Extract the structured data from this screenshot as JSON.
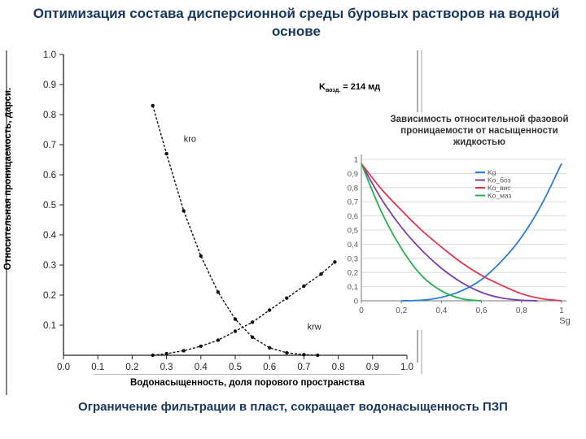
{
  "slide": {
    "title": "Оптимизация состава дисперсионной среды буровых растворов на водной основе",
    "footer": "Ограничение фильтрации в пласт, сокращает водонасыщенность ПЗП"
  },
  "annotation": {
    "k_prefix": "K",
    "k_sub": "возд.",
    "k_value": "= 214 мд"
  },
  "colors": {
    "title": "#17375e",
    "kg": "#2a7fd0",
    "ko_boz": "#7b3fa6",
    "ko_vis": "#e0364f",
    "ko_maz": "#28b050"
  },
  "chart_data": [
    {
      "type": "line",
      "title": "",
      "xlabel": "Водонасыщенность, доля порового пространства",
      "ylabel": "Относительная проницаемость, дарси.",
      "xlim": [
        0,
        1.0
      ],
      "ylim": [
        0,
        1.0
      ],
      "x_ticks": [
        "0.0",
        "0.1",
        "0.2",
        "0.3",
        "0.4",
        "0.5",
        "0.6",
        "0.7",
        "0.8",
        "0.9",
        "1.0"
      ],
      "y_ticks": [
        "0.1",
        "0.2",
        "0.3",
        "0.4",
        "0.5",
        "0.6",
        "0.7",
        "0.8",
        "0.9",
        "1.0"
      ],
      "grid": false,
      "series": [
        {
          "name": "kro",
          "x": [
            0.26,
            0.3,
            0.35,
            0.4,
            0.45,
            0.5,
            0.55,
            0.6,
            0.65,
            0.7,
            0.74
          ],
          "y": [
            0.83,
            0.67,
            0.48,
            0.33,
            0.21,
            0.12,
            0.06,
            0.025,
            0.008,
            0.002,
            0.0
          ]
        },
        {
          "name": "krw",
          "x": [
            0.26,
            0.3,
            0.35,
            0.4,
            0.45,
            0.5,
            0.55,
            0.6,
            0.65,
            0.7,
            0.75,
            0.79
          ],
          "y": [
            0.0,
            0.005,
            0.015,
            0.03,
            0.05,
            0.08,
            0.11,
            0.15,
            0.19,
            0.23,
            0.27,
            0.31
          ]
        }
      ]
    },
    {
      "type": "line",
      "title": "Зависимость относительной фазовой проницаемости от насыщенности жидкостью",
      "xlabel": "Sg",
      "ylabel": "",
      "xlim": [
        0,
        1
      ],
      "ylim": [
        0,
        1
      ],
      "x_ticks": [
        "0",
        "0,2",
        "0,4",
        "0,6",
        "0,8",
        "1"
      ],
      "y_ticks": [
        "0,1",
        "0,2",
        "0,3",
        "0,4",
        "0,5",
        "0,6",
        "0,7",
        "0,8",
        "0,9",
        "1"
      ],
      "grid": true,
      "legend_position": "top-right",
      "series": [
        {
          "name": "Kg",
          "x": [
            0.2,
            0.3,
            0.4,
            0.5,
            0.6,
            0.7,
            0.8,
            0.9,
            1.0
          ],
          "y": [
            0.0,
            0.004,
            0.025,
            0.07,
            0.15,
            0.28,
            0.45,
            0.68,
            0.97
          ]
        },
        {
          "name": "Ko_боз",
          "x": [
            0.0,
            0.1,
            0.2,
            0.3,
            0.4,
            0.5,
            0.6,
            0.7,
            0.8,
            0.88
          ],
          "y": [
            0.97,
            0.72,
            0.52,
            0.36,
            0.23,
            0.13,
            0.06,
            0.02,
            0.004,
            0.0
          ]
        },
        {
          "name": "Ko_вис",
          "x": [
            0.0,
            0.1,
            0.2,
            0.3,
            0.4,
            0.5,
            0.6,
            0.7,
            0.8,
            0.9,
            1.0
          ],
          "y": [
            0.97,
            0.79,
            0.64,
            0.5,
            0.38,
            0.27,
            0.18,
            0.11,
            0.05,
            0.015,
            0.0
          ]
        },
        {
          "name": "Ko_маз",
          "x": [
            0.0,
            0.1,
            0.2,
            0.3,
            0.4,
            0.5,
            0.6
          ],
          "y": [
            0.97,
            0.63,
            0.37,
            0.18,
            0.07,
            0.015,
            0.0
          ]
        }
      ]
    }
  ]
}
